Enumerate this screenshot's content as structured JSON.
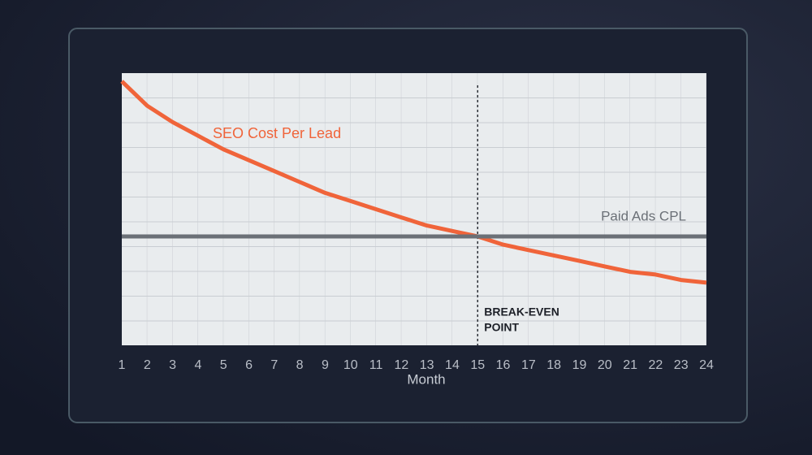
{
  "chart_data": {
    "type": "line",
    "x_label": "Month",
    "categories": [
      "1",
      "2",
      "3",
      "4",
      "5",
      "6",
      "7",
      "8",
      "9",
      "10",
      "11",
      "12",
      "13",
      "14",
      "15",
      "16",
      "17",
      "18",
      "19",
      "20",
      "21",
      "22",
      "23",
      "24"
    ],
    "series": [
      {
        "name": "SEO Cost Per Lead",
        "color": "#f0643a",
        "values": [
          97,
          88,
          82,
          77,
          72,
          68,
          64,
          60,
          56,
          53,
          50,
          47,
          44,
          42,
          40,
          37,
          35,
          33,
          31,
          29,
          27,
          26,
          24,
          23
        ]
      },
      {
        "name": "Paid Ads CPL",
        "color": "#6b7077",
        "values": [
          40,
          40,
          40,
          40,
          40,
          40,
          40,
          40,
          40,
          40,
          40,
          40,
          40,
          40,
          40,
          40,
          40,
          40,
          40,
          40,
          40,
          40,
          40,
          40
        ]
      }
    ],
    "ylim": [
      0,
      100
    ],
    "annotation": {
      "category_index": 14,
      "lines": [
        "BREAK-EVEN",
        "POINT"
      ]
    }
  }
}
